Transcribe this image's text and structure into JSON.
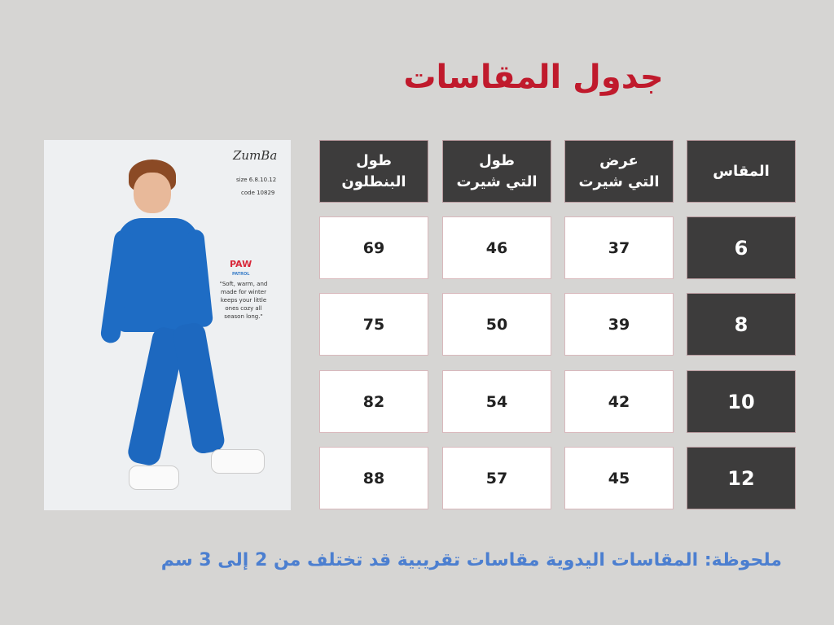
{
  "title": "جدول المقاسات",
  "table": {
    "headers": [
      "المقاس",
      "عرض التي شيرت",
      "طول التي شيرت",
      "طول البنطلون"
    ],
    "header_lines": [
      [
        "المقاس"
      ],
      [
        "عرض",
        "التي شيرت"
      ],
      [
        "طول",
        "التي شيرت"
      ],
      [
        "طول",
        "البنطلون"
      ]
    ],
    "rows": [
      {
        "size": "6",
        "width": "37",
        "shirt_length": "46",
        "pants_length": "69"
      },
      {
        "size": "8",
        "width": "39",
        "shirt_length": "50",
        "pants_length": "75"
      },
      {
        "size": "10",
        "width": "42",
        "shirt_length": "54",
        "pants_length": "82"
      },
      {
        "size": "12",
        "width": "45",
        "shirt_length": "57",
        "pants_length": "88"
      }
    ]
  },
  "photo": {
    "brand": "ZumBa",
    "size_text": "size 6.8.10.12",
    "code_text": "code 10829",
    "logo": "PAW",
    "logo_sub": "PATROL",
    "quote": "\"Soft, warm, and made for winter keeps your little ones cozy all season long.\""
  },
  "note": "ملحوظة: المقاسات اليدوية مقاسات تقريبية قد تختلف من 2 إلى 3 سم",
  "colors": {
    "title": "#c01a2c",
    "header_bg": "#3d3c3c",
    "note": "#4c7fd0",
    "background": "#d6d5d3"
  }
}
